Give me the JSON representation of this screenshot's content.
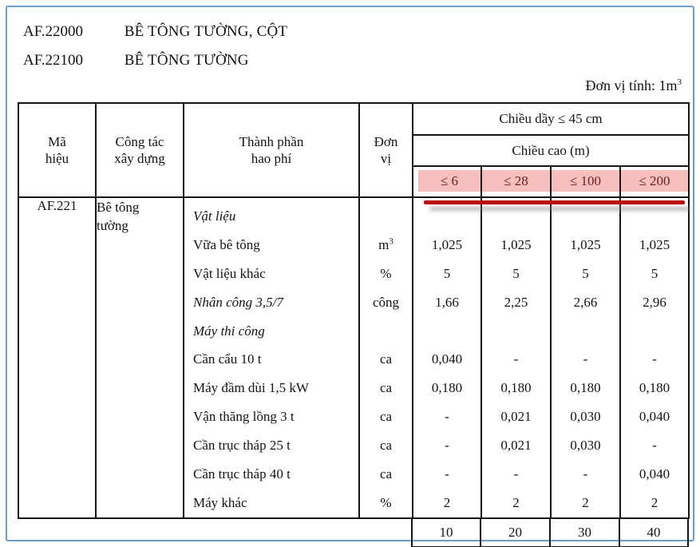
{
  "colors": {
    "frame_blue": "#6f9dca",
    "highlight_bg": "#f7bebe",
    "highlight_text": "#6d2222",
    "underline_red": "#bb0f0f"
  },
  "page": {
    "heading": [
      {
        "code": "AF.22000",
        "title": "BÊ TÔNG TƯỜNG, CỘT"
      },
      {
        "code": "AF.22100",
        "title": "BÊ TÔNG TƯỜNG"
      }
    ],
    "unit_note": "Đơn vị tính: 1m",
    "unit_note_sup": "3"
  },
  "table": {
    "header": {
      "col_code_l1": "Mã",
      "col_code_l2": "hiệu",
      "col_work_l1": "Công tác",
      "col_work_l2": "xây dựng",
      "col_comp_l1": "Thành phần",
      "col_comp_l2": "hao phí",
      "col_unit_l1": "Đơn",
      "col_unit_l2": "vị",
      "thickness_span": "Chiều dầy ≤ 45 cm",
      "height_span": "Chiều cao (m)",
      "height_cols": [
        "≤ 6",
        "≤ 28",
        "≤ 100",
        "≤ 200"
      ]
    },
    "row_code": "AF.221",
    "work_l1": "Bê tông",
    "work_l2": "tường",
    "rows": [
      {
        "name": "Vật liệu",
        "italic": true,
        "unit": "",
        "unit_sup": "",
        "values": [
          "",
          "",
          "",
          ""
        ]
      },
      {
        "name": "Vữa bê tông",
        "italic": false,
        "unit": "m",
        "unit_sup": "3",
        "values": [
          "1,025",
          "1,025",
          "1,025",
          "1,025"
        ]
      },
      {
        "name": "Vật liệu khác",
        "italic": false,
        "unit": "%",
        "unit_sup": "",
        "values": [
          "5",
          "5",
          "5",
          "5"
        ]
      },
      {
        "name": "Nhân công 3,5/7",
        "italic": true,
        "unit": "công",
        "unit_sup": "",
        "values": [
          "1,66",
          "2,25",
          "2,66",
          "2,96"
        ]
      },
      {
        "name": "Máy thi công",
        "italic": true,
        "unit": "",
        "unit_sup": "",
        "values": [
          "",
          "",
          "",
          ""
        ]
      },
      {
        "name": "Cần cẩu 10 t",
        "italic": false,
        "unit": "ca",
        "unit_sup": "",
        "values": [
          "0,040",
          "-",
          "-",
          "-"
        ]
      },
      {
        "name": "Máy đầm dùi 1,5 kW",
        "italic": false,
        "unit": "ca",
        "unit_sup": "",
        "values": [
          "0,180",
          "0,180",
          "0,180",
          "0,180"
        ]
      },
      {
        "name": "Vận thăng lồng 3 t",
        "italic": false,
        "unit": "ca",
        "unit_sup": "",
        "values": [
          "-",
          "0,021",
          "0,030",
          "0,040"
        ]
      },
      {
        "name": "Cần trục tháp 25 t",
        "italic": false,
        "unit": "ca",
        "unit_sup": "",
        "values": [
          "-",
          "0,021",
          "0,030",
          "-"
        ]
      },
      {
        "name": "Cần trục tháp 40 t",
        "italic": false,
        "unit": "ca",
        "unit_sup": "",
        "values": [
          "-",
          "-",
          "-",
          "0,040"
        ]
      },
      {
        "name": "Máy khác",
        "italic": false,
        "unit": "%",
        "unit_sup": "",
        "values": [
          "2",
          "2",
          "2",
          "2"
        ]
      }
    ],
    "footer_codes": [
      "10",
      "20",
      "30",
      "40"
    ]
  }
}
